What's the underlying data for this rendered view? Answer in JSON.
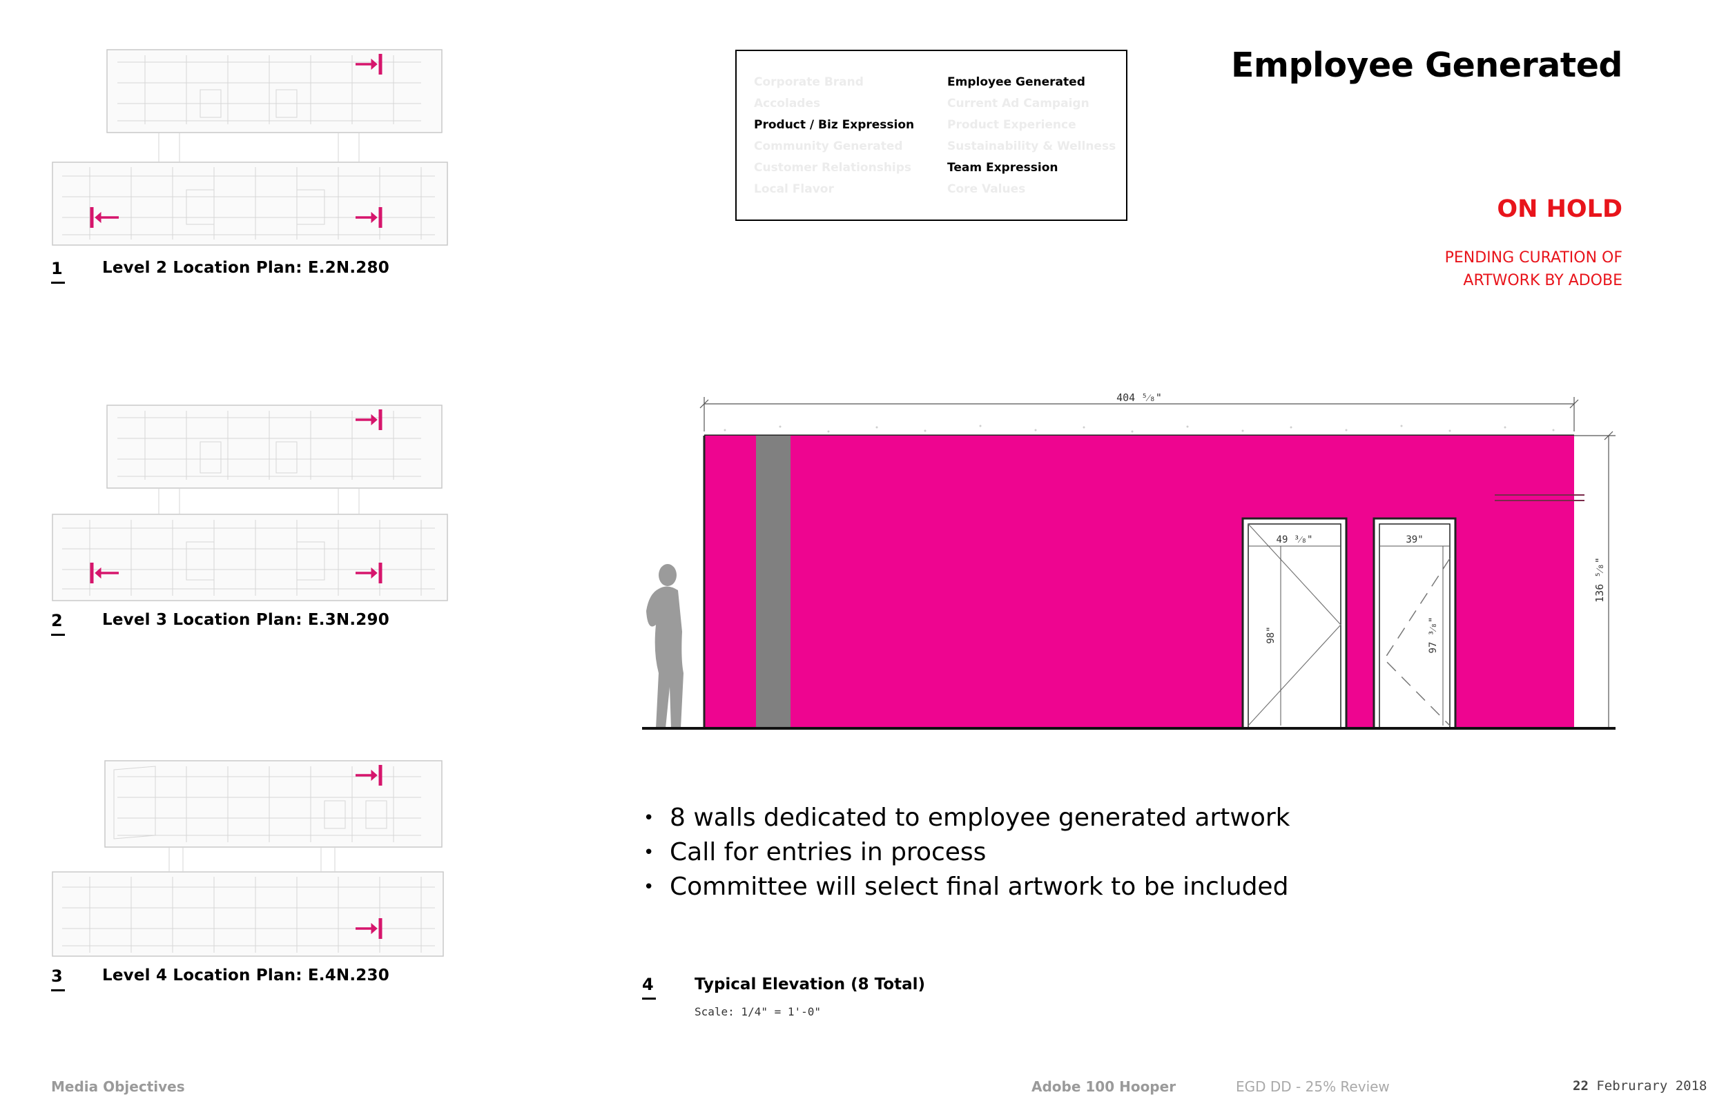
{
  "header": {
    "title": "Employee Generated",
    "status": "ON HOLD",
    "status_note_line1": "PENDING CURATION OF",
    "status_note_line2": "ARTWORK BY ADOBE"
  },
  "categories": {
    "column1": [
      {
        "label": "Corporate Brand",
        "active": false
      },
      {
        "label": "Accolades",
        "active": false
      },
      {
        "label": "Product / Biz Expression",
        "active": true
      },
      {
        "label": "Community Generated",
        "active": false
      },
      {
        "label": "Customer Relationships",
        "active": false
      },
      {
        "label": "Local Flavor",
        "active": false
      }
    ],
    "column2": [
      {
        "label": "Employee Generated",
        "active": true
      },
      {
        "label": "Current Ad Campaign",
        "active": false
      },
      {
        "label": "Product Experience",
        "active": false
      },
      {
        "label": "Sustainability & Wellness",
        "active": false
      },
      {
        "label": "Team Expression",
        "active": true
      },
      {
        "label": "Core Values",
        "active": false
      }
    ]
  },
  "plans": [
    {
      "number": "1",
      "title": "Level 2 Location Plan: E.2N.280"
    },
    {
      "number": "2",
      "title": "Level 3 Location Plan: E.3N.290"
    },
    {
      "number": "3",
      "title": "Level 4 Location Plan: E.4N.230"
    }
  ],
  "elevation": {
    "overall_width": "404 ⁵⁄₈\"",
    "door1_width": "49 ³⁄₈\"",
    "door2_width": "39\"",
    "door1_height": "98\"",
    "door2_height": "97 ³⁄₈\"",
    "wall_height": "136 ⁵⁄₈\"",
    "wall_color": "#ee0590",
    "column_color": "#808080",
    "figure_color": "#9b9b9b"
  },
  "bullets": [
    "8 walls dedicated to employee generated artwork",
    "Call for entries in process",
    "Committee will select final artwork to be included"
  ],
  "elevation_caption": {
    "number": "4",
    "title": "Typical Elevation (8 Total)",
    "scale": "Scale: 1/4\" = 1'-0\""
  },
  "footer": {
    "section": "Media Objectives",
    "project": "Adobe 100 Hooper",
    "phase": "EGD DD - 25%  Review",
    "date_day": "22",
    "date_rest": " Februrary 2018"
  },
  "colors": {
    "accent_red": "#e8141b",
    "marker_magenta": "#d6156c"
  }
}
